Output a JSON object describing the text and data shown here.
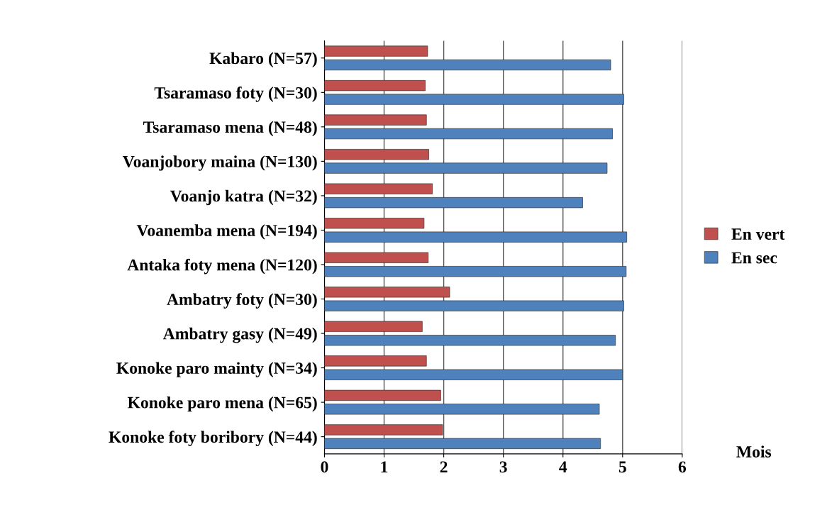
{
  "chart_data": {
    "type": "bar",
    "orientation": "horizontal",
    "xlabel": "Mois",
    "categories": [
      "Kabaro (N=57)",
      "Tsaramaso foty (N=30)",
      "Tsaramaso mena (N=48)",
      "Voanjobory maina (N=130)",
      "Voanjo katra (N=32)",
      "Voanemba mena (N=194)",
      "Antaka foty mena (N=120)",
      "Ambatry foty (N=30)",
      "Ambatry gasy (N=49)",
      "Konoke paro mainty (N=34)",
      "Konoke paro mena (N=65)",
      "Konoke foty boribory (N=44)"
    ],
    "series": [
      {
        "name": "En vert",
        "color": "#c0504d",
        "values": [
          1.73,
          1.69,
          1.71,
          1.75,
          1.81,
          1.67,
          1.74,
          2.1,
          1.64,
          1.71,
          1.95,
          1.98
        ]
      },
      {
        "name": "En sec",
        "color": "#4f81bd",
        "values": [
          4.8,
          5.02,
          4.83,
          4.74,
          4.33,
          5.07,
          5.06,
          5.02,
          4.88,
          5.0,
          4.61,
          4.63
        ]
      }
    ],
    "xlim": [
      0,
      6
    ],
    "xticks": [
      0,
      1,
      2,
      3,
      4,
      5,
      6
    ],
    "grid": "x",
    "legend": "right"
  }
}
